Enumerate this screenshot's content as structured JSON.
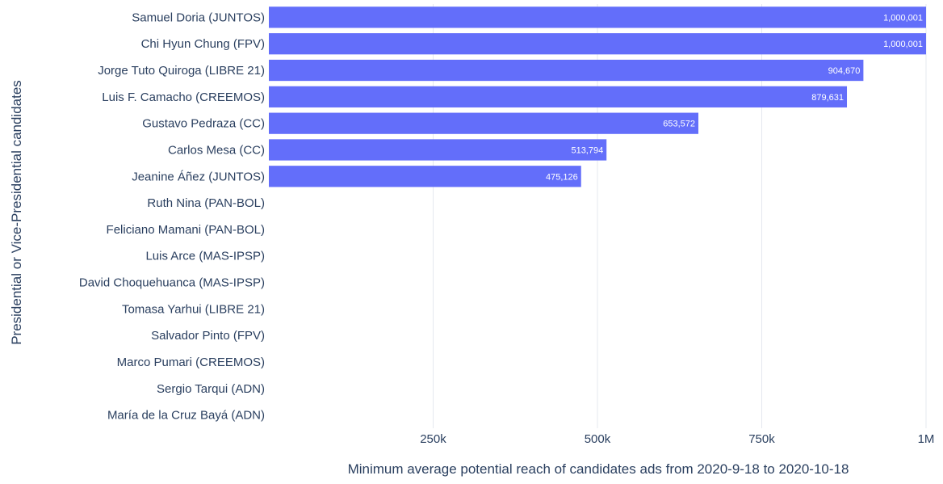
{
  "chart_data": {
    "type": "bar",
    "orientation": "horizontal",
    "categories": [
      "Samuel Doria (JUNTOS)",
      "Chi Hyun Chung (FPV)",
      "Jorge Tuto Quiroga (LIBRE 21)",
      "Luis F. Camacho (CREEMOS)",
      "Gustavo Pedraza (CC)",
      "Carlos Mesa (CC)",
      "Jeanine Áñez (JUNTOS)",
      "Ruth Nina (PAN-BOL)",
      "Feliciano Mamani (PAN-BOL)",
      "Luis Arce (MAS-IPSP)",
      "David Choquehuanca (MAS-IPSP)",
      "Tomasa Yarhui (LIBRE 21)",
      "Salvador Pinto (FPV)",
      "Marco Pumari (CREEMOS)",
      "Sergio Tarqui (ADN)",
      "María de la Cruz Bayá (ADN)"
    ],
    "values": [
      1000001,
      1000001,
      904670,
      879631,
      653572,
      513794,
      475126,
      0,
      0,
      0,
      0,
      0,
      0,
      0,
      0,
      0
    ],
    "value_labels": [
      "1,000,001",
      "1,000,001",
      "904,670",
      "879,631",
      "653,572",
      "513,794",
      "475,126",
      "",
      "",
      "",
      "",
      "",
      "",
      "",
      "",
      ""
    ],
    "xlabel": "Minimum average potential reach of candidates ads from 2020-9-18 to 2020-10-18",
    "ylabel": "Presidential or Vice-Presidential candidates",
    "xlim": [
      0,
      1000001
    ],
    "xticks": [
      250000,
      500000,
      750000,
      1000000
    ],
    "xtick_labels": [
      "250k",
      "500k",
      "750k",
      "1M"
    ],
    "bar_color": "#636efa",
    "grid": true
  }
}
